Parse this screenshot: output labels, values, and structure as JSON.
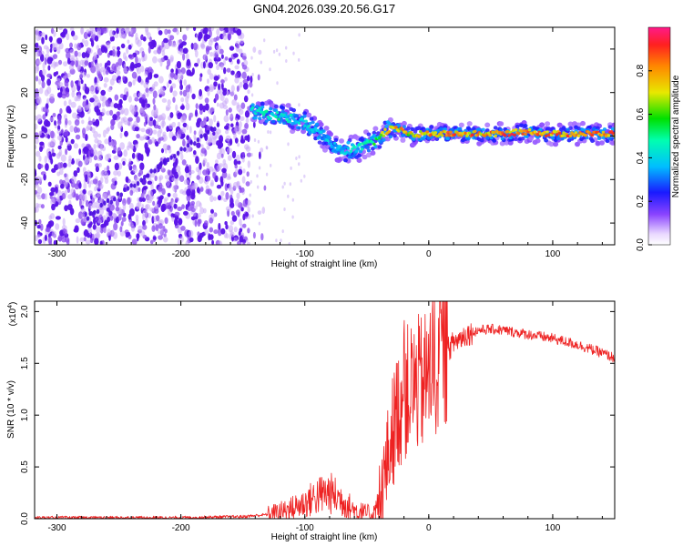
{
  "figure_title": "GN04.2026.039.20.56.G17",
  "colors": {
    "snr_line": "#ee2222",
    "axis": "#000000",
    "scatter": "#6a1ae0",
    "background": "#ffffff"
  },
  "colorbar": {
    "label": "Normalized spectral amplitude",
    "ticks": [
      "0.0",
      "0.2",
      "0.4",
      "0.6",
      "0.8"
    ],
    "tick_values": [
      0.0,
      0.2,
      0.4,
      0.6,
      0.8
    ],
    "range": [
      0,
      1
    ]
  },
  "chart_data": [
    {
      "type": "heatmap",
      "title": "GN04.2026.039.20.56.G17",
      "xlabel": "Height of straight line (km)",
      "ylabel": "Frequency (Hz)",
      "xlim": [
        -318,
        150
      ],
      "ylim": [
        -50,
        50
      ],
      "x_ticks": [
        "-300",
        "-200",
        "-100",
        "0",
        "100"
      ],
      "x_tick_values": [
        -300,
        -200,
        -100,
        0,
        100
      ],
      "y_ticks": [
        "40",
        "20",
        "0",
        "-20",
        "-40"
      ],
      "y_tick_values": [
        40,
        20,
        0,
        -20,
        -40
      ],
      "noise_region_x": [
        -318,
        -145
      ],
      "diagonal_trend": [
        [
          -275,
          -37
        ],
        [
          -170,
          5
        ]
      ],
      "ridge": {
        "x": [
          -143,
          -130,
          -120,
          -110,
          -100,
          -90,
          -80,
          -70,
          -60,
          -50,
          -40,
          -33,
          -25,
          -18,
          -12,
          -6,
          0,
          20,
          40,
          60,
          75,
          85,
          95,
          110,
          130,
          150
        ],
        "y": [
          12,
          10,
          9,
          8,
          6,
          2,
          -3,
          -7,
          -6,
          -4,
          -1,
          3,
          3,
          2,
          0,
          1,
          1,
          1,
          1,
          1,
          2,
          2,
          1,
          1,
          1,
          1
        ],
        "amplitude": [
          0.45,
          0.5,
          0.5,
          0.45,
          0.45,
          0.4,
          0.4,
          0.45,
          0.45,
          0.55,
          0.6,
          0.85,
          0.85,
          0.8,
          0.75,
          0.8,
          0.85,
          0.88,
          0.88,
          0.9,
          0.9,
          0.9,
          0.88,
          0.9,
          0.9,
          0.9
        ]
      }
    },
    {
      "type": "line",
      "xlabel": "Height of straight line (km)",
      "ylabel": "SNR (10 * v/v)",
      "y_multiplier": "(x10",
      "y_multiplier_exp": "4",
      "y_multiplier_close": ")",
      "xlim": [
        -318,
        150
      ],
      "ylim": [
        0,
        2.1
      ],
      "x_ticks": [
        "-300",
        "-200",
        "-100",
        "0",
        "100"
      ],
      "x_tick_values": [
        -300,
        -200,
        -100,
        0,
        100
      ],
      "y_ticks": [
        "2.0",
        "1.5",
        "1.0",
        "0.5",
        "0.0"
      ],
      "y_tick_values": [
        2.0,
        1.5,
        1.0,
        0.5,
        0.0
      ],
      "series": [
        {
          "name": "SNR",
          "x": [
            -318,
            -250,
            -200,
            -150,
            -130,
            -115,
            -100,
            -90,
            -80,
            -70,
            -60,
            -50,
            -45,
            -40,
            -35,
            -30,
            -25,
            -20,
            -15,
            -10,
            -5,
            0,
            10,
            20,
            30,
            40,
            50,
            60,
            80,
            100,
            120,
            140,
            150
          ],
          "y": [
            0.01,
            0.01,
            0.01,
            0.02,
            0.04,
            0.08,
            0.15,
            0.22,
            0.25,
            0.18,
            0.08,
            0.05,
            0.06,
            0.15,
            0.45,
            0.8,
            1.05,
            1.2,
            1.25,
            1.3,
            1.3,
            1.4,
            1.55,
            1.7,
            1.78,
            1.82,
            1.83,
            1.82,
            1.78,
            1.74,
            1.68,
            1.6,
            1.55
          ]
        }
      ]
    }
  ]
}
